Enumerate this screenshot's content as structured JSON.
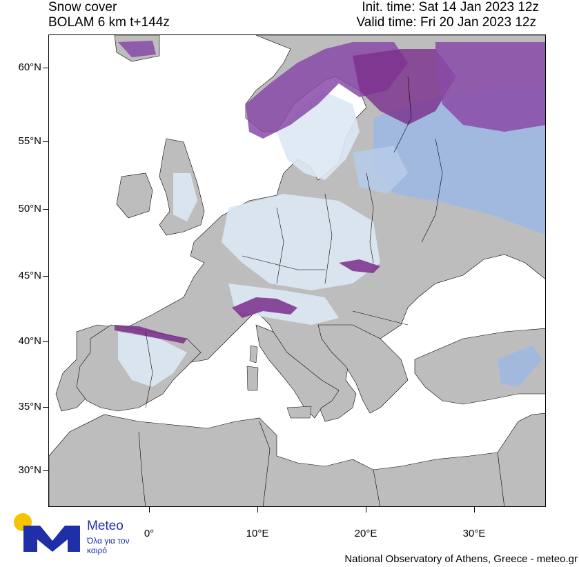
{
  "header": {
    "title_line1": "Snow cover",
    "title_line2": "BOLAM 6 km t+144z",
    "init_time": "Init. time: Sat 14 Jan 2023 12z",
    "valid_time": "Valid time: Fri 20 Jan 2023 12z"
  },
  "axes": {
    "latitude_labels": [
      "60°N",
      "55°N",
      "50°N",
      "45°N",
      "40°N",
      "35°N",
      "30°N"
    ],
    "longitude_labels": [
      "0°",
      "10°E",
      "20°E",
      "30°E"
    ]
  },
  "colors": {
    "land_no_snow": "#bdbdbd",
    "sea": "#ffffff",
    "snow_light": "#dce8f4",
    "snow_medium": "#9fb8e0",
    "snow_heavy": "#8a4aa8",
    "snow_very_heavy": "#7a2e8c",
    "logo_blue": "#1e2fa8",
    "logo_yellow": "#f5c400"
  },
  "logo": {
    "name": "Meteo",
    "tagline": "Όλα για τον καιρό"
  },
  "credit": "National Observatory of Athens, Greece - meteo.gr"
}
